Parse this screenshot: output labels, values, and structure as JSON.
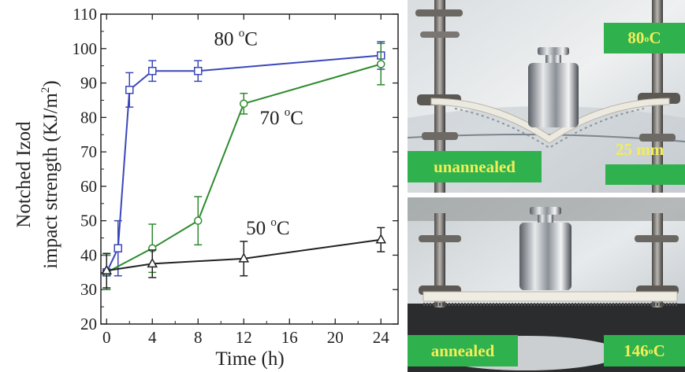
{
  "chart_data": {
    "type": "line",
    "xlabel": "Time (h)",
    "ylabel_line1": "Notched Izod",
    "ylabel_line2": "impact strength (KJ/m",
    "ylabel_sup": "2",
    "ylabel_end": ")",
    "xlim": [
      -0.5,
      25.5
    ],
    "ylim": [
      20,
      110
    ],
    "xticks": [
      0,
      4,
      8,
      12,
      16,
      20,
      24
    ],
    "yticks": [
      20,
      30,
      40,
      50,
      60,
      70,
      80,
      90,
      100,
      110
    ],
    "grid": false,
    "series": [
      {
        "name": "80 °C",
        "label_main": "80 ",
        "label_deg": "o",
        "label_unit": "C",
        "color": "#3a48b8",
        "marker": "square",
        "points": [
          {
            "x": 0,
            "y": 35,
            "err": 5
          },
          {
            "x": 1,
            "y": 42,
            "err": 8
          },
          {
            "x": 2,
            "y": 88,
            "err": 5
          },
          {
            "x": 4,
            "y": 93.5,
            "err": 3
          },
          {
            "x": 8,
            "y": 93.5,
            "err": 3
          },
          {
            "x": 24,
            "y": 98,
            "err": 4
          }
        ]
      },
      {
        "name": "70 °C",
        "label_main": "70 ",
        "label_deg": "o",
        "label_unit": "C",
        "color": "#2e8b2e",
        "marker": "circle",
        "points": [
          {
            "x": 0,
            "y": 35,
            "err": 5
          },
          {
            "x": 4,
            "y": 42,
            "err": 7
          },
          {
            "x": 8,
            "y": 50,
            "err": 7
          },
          {
            "x": 12,
            "y": 84,
            "err": 3
          },
          {
            "x": 24,
            "y": 95.5,
            "err": 6
          }
        ]
      },
      {
        "name": "50 °C",
        "label_main": "50 ",
        "label_deg": "o",
        "label_unit": "C",
        "color": "#222222",
        "marker": "triangle",
        "points": [
          {
            "x": 0,
            "y": 35.5,
            "err": 5
          },
          {
            "x": 4,
            "y": 37.5,
            "err": 4
          },
          {
            "x": 12,
            "y": 39,
            "err": 5
          },
          {
            "x": 24,
            "y": 44.5,
            "err": 3.5
          }
        ]
      }
    ]
  },
  "photos": {
    "top": {
      "temp_main": "80 ",
      "temp_deg": "o",
      "temp_unit": "C",
      "state": "unannealed",
      "scale": "25 mm"
    },
    "bottom": {
      "temp_main": "146 ",
      "temp_deg": "o",
      "temp_unit": "C",
      "state": "annealed"
    }
  }
}
